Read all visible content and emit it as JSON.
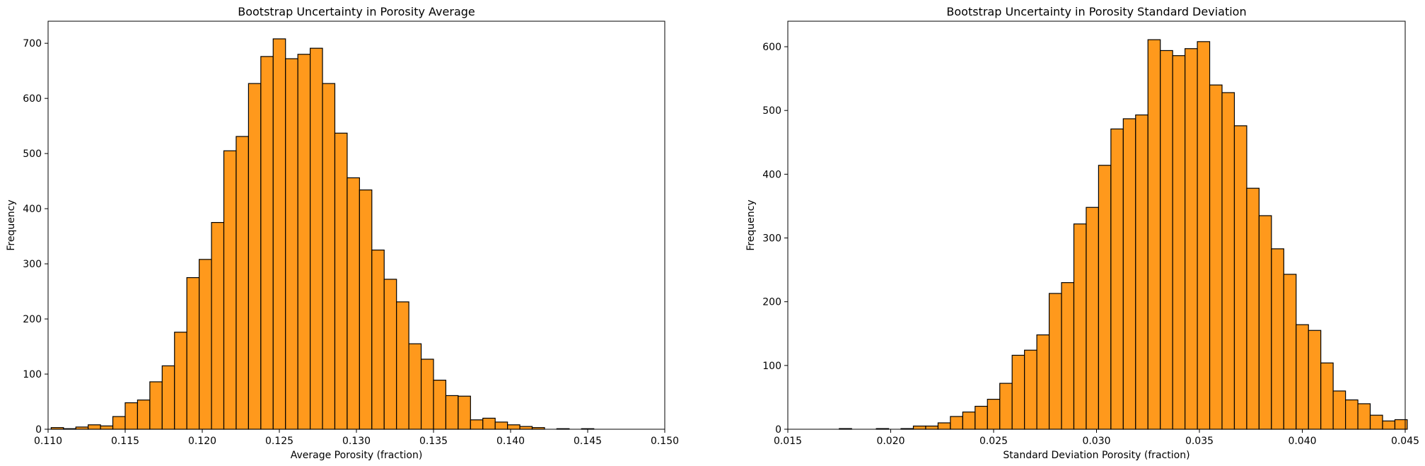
{
  "colors": {
    "bar_fill": "#ff991c",
    "bar_edge": "#000000",
    "background": "#ffffff"
  },
  "chart_data": [
    {
      "type": "bar",
      "title": "Bootstrap Uncertainty in Porosity Average",
      "xlabel": "Average Porosity (fraction)",
      "ylabel": "Frequency",
      "xlim": [
        0.11,
        0.15
      ],
      "ylim": [
        0,
        740
      ],
      "xticks": [
        "0.110",
        "0.115",
        "0.120",
        "0.125",
        "0.130",
        "0.135",
        "0.140",
        "0.145",
        "0.150"
      ],
      "yticks": [
        "0",
        "100",
        "200",
        "300",
        "400",
        "500",
        "600",
        "700"
      ],
      "bin_start": 0.1102,
      "bin_width": 0.0008,
      "values": [
        3,
        1,
        4,
        8,
        6,
        23,
        48,
        53,
        86,
        115,
        176,
        275,
        308,
        375,
        505,
        531,
        627,
        676,
        708,
        672,
        680,
        691,
        627,
        537,
        456,
        434,
        325,
        272,
        231,
        155,
        127,
        89,
        61,
        60,
        17,
        20,
        13,
        8,
        5,
        3,
        0,
        1,
        0,
        1
      ]
    },
    {
      "type": "bar",
      "title": "Bootstrap Uncertainty in Porosity Standard Deviation",
      "xlabel": "Standard Deviation Porosity (fraction)",
      "ylabel": "Frequency",
      "xlim": [
        0.015,
        0.045
      ],
      "ylim": [
        0,
        640
      ],
      "xticks": [
        "0.015",
        "0.020",
        "0.025",
        "0.030",
        "0.035",
        "0.040",
        "0.045"
      ],
      "yticks": [
        "0",
        "100",
        "200",
        "300",
        "400",
        "500",
        "600"
      ],
      "bin_start": 0.0175,
      "bin_width": 0.0006,
      "values": [
        1,
        0,
        0,
        1,
        0,
        1,
        5,
        5,
        10,
        20,
        27,
        36,
        47,
        72,
        116,
        124,
        148,
        213,
        230,
        322,
        348,
        414,
        471,
        487,
        493,
        611,
        594,
        586,
        597,
        608,
        540,
        528,
        476,
        378,
        335,
        283,
        243,
        164,
        155,
        104,
        60,
        46,
        40,
        22,
        13,
        15
      ]
    }
  ]
}
